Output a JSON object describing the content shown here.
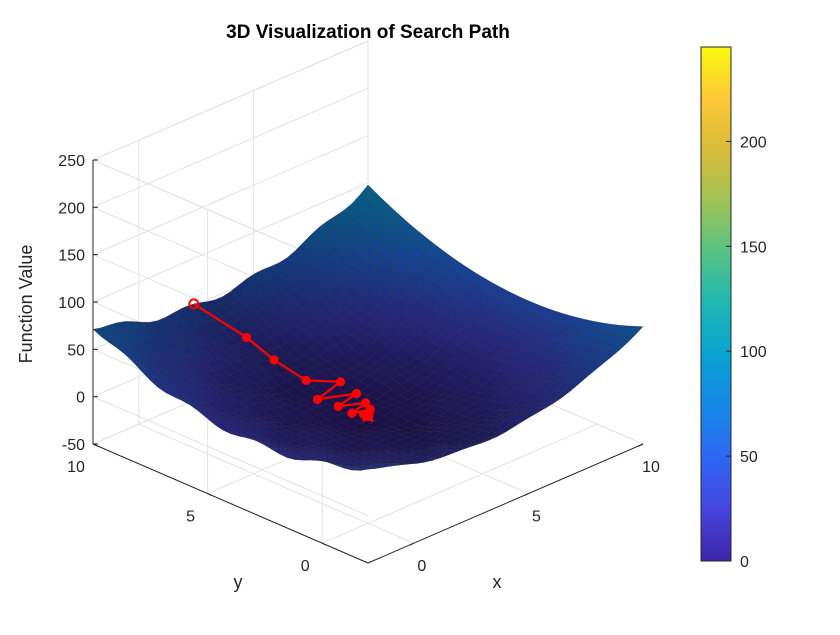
{
  "chart_data": {
    "type": "surface3d",
    "title": "3D Visualization of Search Path",
    "xlabel": "x",
    "ylabel": "y",
    "zlabel": "Function Value",
    "xlim": [
      -2,
      10
    ],
    "ylim": [
      -2,
      10
    ],
    "zlim": [
      -50,
      250
    ],
    "x_ticks": [
      "0",
      "5",
      "10"
    ],
    "y_ticks": [
      "0",
      "5",
      "10"
    ],
    "z_ticks": [
      "-50",
      "0",
      "50",
      "100",
      "150",
      "200",
      "250"
    ],
    "surface_function": "(x-3)^2 + (y-3)^2 + noise",
    "surface_range": {
      "x": [
        -2,
        10
      ],
      "y": [
        -2,
        10
      ]
    },
    "colorbar": {
      "colormap": "parula",
      "range": [
        0,
        245
      ],
      "ticks": [
        "0",
        "50",
        "100",
        "150",
        "200"
      ]
    },
    "grid": true,
    "series": [
      {
        "type": "path",
        "color": "#ff0000",
        "marker": "circle",
        "points": [
          {
            "x": 2.4,
            "y": 10.0,
            "z": 51.9
          },
          {
            "x": 3.0,
            "y": 8.3,
            "z": 28.1
          },
          {
            "x": 3.0,
            "y": 7.1,
            "z": 16.8
          },
          {
            "x": 3.1,
            "y": 5.8,
            "z": 7.8
          },
          {
            "x": 3.9,
            "y": 5.1,
            "z": 5.2
          },
          {
            "x": 2.6,
            "y": 4.8,
            "z": 3.4
          },
          {
            "x": 3.8,
            "y": 4.3,
            "z": 2.3
          },
          {
            "x": 2.8,
            "y": 4.1,
            "z": 1.3
          },
          {
            "x": 3.6,
            "y": 3.7,
            "z": 0.8
          },
          {
            "x": 2.8,
            "y": 3.5,
            "z": 0.3
          },
          {
            "x": 3.4,
            "y": 3.3,
            "z": 0.2
          },
          {
            "x": 3.0,
            "y": 3.2,
            "z": 0.1
          },
          {
            "x": 3.1,
            "y": 3.05,
            "z": 0.0
          },
          {
            "x": 3.0,
            "y": 3.0,
            "z": 0.0
          }
        ]
      }
    ]
  },
  "colors": {
    "path": "#ff0000",
    "box": "#262626",
    "grid": "#e3e3e3"
  }
}
